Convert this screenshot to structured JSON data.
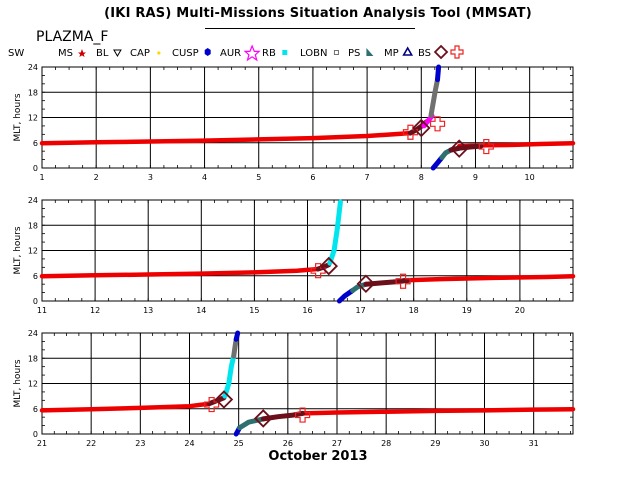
{
  "header": {
    "title": "(IKI RAS) Multi-Missions Situation Analysis Tool (MMSAT)",
    "source": "PLAZMA_F"
  },
  "legend": [
    {
      "label": "SW",
      "color": "#000000",
      "icon": "none"
    },
    {
      "label": "MS",
      "color": "#cc0000",
      "icon": "star-small"
    },
    {
      "label": "BL",
      "color": "#000000",
      "icon": "triangle-down"
    },
    {
      "label": "CAP",
      "color": "#ffd700",
      "icon": "dot"
    },
    {
      "label": "CUSP",
      "color": "#0000cc",
      "icon": "hexagon"
    },
    {
      "label": "AUR",
      "color": "#ff00ff",
      "icon": "star-outline"
    },
    {
      "label": "RB",
      "color": "#00e5ee",
      "icon": "square"
    },
    {
      "label": "LOBN",
      "color": "#707070",
      "icon": "square-outline"
    },
    {
      "label": "PS",
      "color": "#2f6f6f",
      "icon": "wedge"
    },
    {
      "label": "MP",
      "color": "#000080",
      "icon": "triangle-up"
    },
    {
      "label": "BS",
      "color": "#6b0f1a",
      "icon": "diamond"
    },
    {
      "label": "",
      "color": "#ee2222",
      "icon": "cross-outline"
    }
  ],
  "footer": {
    "label": "October 2013"
  },
  "chart_data": [
    {
      "type": "scatter",
      "title": "",
      "xlabel": "",
      "ylabel": "MLT, hours",
      "xlim": [
        1,
        10.8
      ],
      "ylim": [
        0,
        24
      ],
      "xticks": [
        1,
        2,
        3,
        4,
        5,
        6,
        7,
        8,
        9,
        10
      ],
      "yticks": [
        0,
        6,
        12,
        18,
        24
      ],
      "series": [
        {
          "name": "SW",
          "color": "#ee0000",
          "x": [
            1.0,
            2.0,
            3.0,
            4.0,
            5.0,
            6.0,
            7.0,
            7.8
          ],
          "y": [
            5.9,
            6.1,
            6.3,
            6.5,
            6.8,
            7.1,
            7.6,
            8.3
          ]
        },
        {
          "name": "SW",
          "color": "#ee0000",
          "x": [
            8.7,
            9.2,
            9.7,
            10.2,
            10.8
          ],
          "y": [
            5.2,
            5.4,
            5.5,
            5.7,
            5.9
          ]
        },
        {
          "name": "BS",
          "color": "#6b0f1a",
          "x": [
            7.8,
            7.9,
            8.0,
            8.1
          ],
          "y": [
            8.3,
            9.0,
            9.9,
            11.0
          ]
        },
        {
          "name": "AUR",
          "color": "#ff00ff",
          "x": [
            8.05,
            8.1,
            8.15,
            8.2
          ],
          "y": [
            10.0,
            10.8,
            11.6,
            12.4
          ]
        },
        {
          "name": "LOBN",
          "color": "#707070",
          "x": [
            8.18,
            8.22,
            8.26,
            8.3
          ],
          "y": [
            12.5,
            15.5,
            18.5,
            21.0
          ]
        },
        {
          "name": "CUSP",
          "color": "#0000cc",
          "x": [
            8.3,
            8.32
          ],
          "y": [
            21.0,
            24.0
          ]
        },
        {
          "name": "CUSP",
          "color": "#0000cc",
          "x": [
            8.22,
            8.3,
            8.38
          ],
          "y": [
            0.0,
            1.2,
            2.5
          ]
        },
        {
          "name": "PS",
          "color": "#2f6f6f",
          "x": [
            8.38,
            8.45,
            8.55
          ],
          "y": [
            2.5,
            3.6,
            4.3
          ]
        },
        {
          "name": "MP",
          "color": "#000080",
          "x": [
            8.55,
            8.7
          ],
          "y": [
            4.3,
            4.7
          ]
        },
        {
          "name": "BS",
          "color": "#6b0f1a",
          "x": [
            8.55,
            8.7,
            8.9,
            9.1
          ],
          "y": [
            4.3,
            4.7,
            5.0,
            5.2
          ]
        }
      ],
      "markers": [
        {
          "symbol": "cross",
          "x": 7.8,
          "y": 8.5
        },
        {
          "symbol": "diamond",
          "x": 8.0,
          "y": 9.5
        },
        {
          "symbol": "cross",
          "x": 8.3,
          "y": 10.5
        },
        {
          "symbol": "diamond",
          "x": 8.7,
          "y": 4.6
        },
        {
          "symbol": "cross",
          "x": 9.2,
          "y": 5.1
        }
      ]
    },
    {
      "type": "scatter",
      "title": "",
      "xlabel": "",
      "ylabel": "MLT, hours",
      "xlim": [
        11,
        21
      ],
      "ylim": [
        0,
        24
      ],
      "xticks": [
        11,
        12,
        13,
        14,
        15,
        16,
        17,
        18,
        19,
        20
      ],
      "yticks": [
        0,
        6,
        12,
        18,
        24
      ],
      "series": [
        {
          "name": "SW",
          "color": "#ee0000",
          "x": [
            11.0,
            12.0,
            13.0,
            14.0,
            15.0,
            15.8,
            16.2
          ],
          "y": [
            5.9,
            6.1,
            6.3,
            6.5,
            6.8,
            7.2,
            7.6
          ]
        },
        {
          "name": "SW",
          "color": "#ee0000",
          "x": [
            17.8,
            18.5,
            19.5,
            20.5,
            21.0
          ],
          "y": [
            4.9,
            5.2,
            5.5,
            5.7,
            5.9
          ]
        },
        {
          "name": "BS",
          "color": "#6b0f1a",
          "x": [
            16.2,
            16.3,
            16.4
          ],
          "y": [
            7.6,
            8.0,
            8.6
          ]
        },
        {
          "name": "RB",
          "color": "#00e5ee",
          "x": [
            16.42,
            16.5,
            16.56,
            16.62
          ],
          "y": [
            9.0,
            12.0,
            17.0,
            23.5
          ]
        },
        {
          "name": "CUSP",
          "color": "#0000cc",
          "x": [
            16.6,
            16.7,
            16.85
          ],
          "y": [
            0.0,
            1.2,
            2.5
          ]
        },
        {
          "name": "PS",
          "color": "#2f6f6f",
          "x": [
            16.85,
            16.95,
            17.1
          ],
          "y": [
            2.5,
            3.4,
            4.0
          ]
        },
        {
          "name": "BS",
          "color": "#6b0f1a",
          "x": [
            17.1,
            17.4,
            17.7,
            17.9
          ],
          "y": [
            4.0,
            4.3,
            4.6,
            4.9
          ]
        }
      ],
      "markers": [
        {
          "symbol": "cross",
          "x": 16.2,
          "y": 7.2
        },
        {
          "symbol": "diamond",
          "x": 16.4,
          "y": 8.3
        },
        {
          "symbol": "diamond",
          "x": 17.1,
          "y": 4.1
        },
        {
          "symbol": "cross",
          "x": 17.8,
          "y": 4.7
        }
      ]
    },
    {
      "type": "scatter",
      "title": "",
      "xlabel": "",
      "ylabel": "MLT, hours",
      "xlim": [
        21,
        31.8
      ],
      "ylim": [
        0,
        24
      ],
      "xticks": [
        21,
        22,
        23,
        24,
        25,
        26,
        27,
        28,
        29,
        30,
        31
      ],
      "yticks": [
        0,
        6,
        12,
        18,
        24
      ],
      "series": [
        {
          "name": "SW",
          "color": "#ee0000",
          "x": [
            21.0,
            22.0,
            23.0,
            24.0,
            24.4
          ],
          "y": [
            5.6,
            5.9,
            6.2,
            6.6,
            7.2
          ]
        },
        {
          "name": "SW",
          "color": "#ee0000",
          "x": [
            26.3,
            27.0,
            28.0,
            29.0,
            30.0,
            31.0,
            31.8
          ],
          "y": [
            4.9,
            5.1,
            5.3,
            5.5,
            5.6,
            5.8,
            5.9
          ]
        },
        {
          "name": "BS",
          "color": "#6b0f1a",
          "x": [
            24.4,
            24.55,
            24.7
          ],
          "y": [
            7.2,
            7.9,
            8.6
          ]
        },
        {
          "name": "RB",
          "color": "#00e5ee",
          "x": [
            24.72,
            24.8,
            24.85,
            24.9
          ],
          "y": [
            9.0,
            12.0,
            16.0,
            18.5
          ]
        },
        {
          "name": "LOBN",
          "color": "#707070",
          "x": [
            24.9,
            24.93,
            24.95
          ],
          "y": [
            18.5,
            21.0,
            22.5
          ]
        },
        {
          "name": "CUSP",
          "color": "#0000cc",
          "x": [
            24.95,
            24.98
          ],
          "y": [
            22.5,
            24.0
          ]
        },
        {
          "name": "CUSP",
          "color": "#0000cc",
          "x": [
            24.95,
            25.02
          ],
          "y": [
            0.0,
            1.5
          ]
        },
        {
          "name": "PS",
          "color": "#2f6f6f",
          "x": [
            25.02,
            25.2,
            25.5
          ],
          "y": [
            1.5,
            2.8,
            3.6
          ]
        },
        {
          "name": "BS",
          "color": "#6b0f1a",
          "x": [
            25.5,
            25.8,
            26.1,
            26.3
          ],
          "y": [
            3.6,
            4.1,
            4.5,
            4.9
          ]
        }
      ],
      "markers": [
        {
          "symbol": "cross",
          "x": 24.45,
          "y": 7.0
        },
        {
          "symbol": "diamond",
          "x": 24.7,
          "y": 8.2
        },
        {
          "symbol": "diamond",
          "x": 25.5,
          "y": 3.7
        },
        {
          "symbol": "cross",
          "x": 26.3,
          "y": 4.5
        }
      ]
    }
  ]
}
